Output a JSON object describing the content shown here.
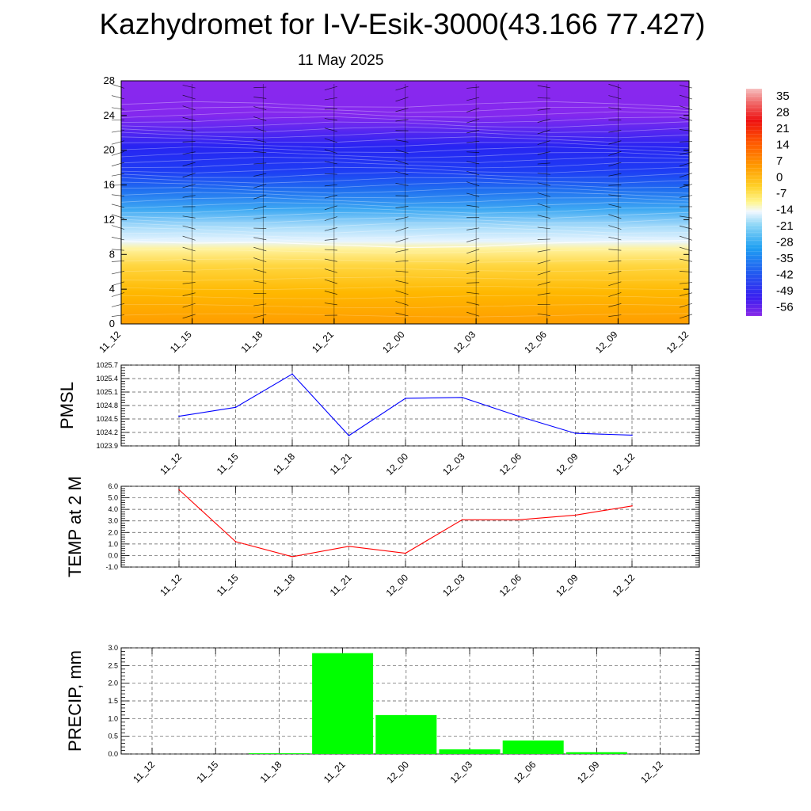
{
  "page": {
    "title": "Kazhydromet for I-V-Esik-3000(43.166 77.427)",
    "subtitle": "11 May 2025"
  },
  "chart_data": [
    {
      "type": "heatmap",
      "x_categories": [
        "11_12",
        "11_15",
        "11_18",
        "11_21",
        "12_00",
        "12_03",
        "12_06",
        "12_09",
        "12_12"
      ],
      "y_ticks": [
        0,
        4,
        8,
        12,
        16,
        20,
        24,
        28
      ],
      "ylim": [
        0,
        28
      ],
      "colorbar": {
        "labels": [
          "35",
          "28",
          "21",
          "14",
          "7",
          "0",
          "-7",
          "-14",
          "-21",
          "-28",
          "-35",
          "-42",
          "-49",
          "-56"
        ],
        "range": [
          -60,
          38
        ]
      },
      "freezing_level": [
        9.5,
        9.3,
        9.4,
        9.1,
        8.8,
        8.9,
        9.3,
        9.5,
        9.6
      ],
      "overlay": "wind barbs"
    },
    {
      "type": "line",
      "ylabel": "PMSL",
      "x": [
        "11_12",
        "11_15",
        "11_18",
        "11_21",
        "12_00",
        "12_03",
        "12_06",
        "12_09",
        "12_12"
      ],
      "values": [
        1024.56,
        1024.76,
        1025.5,
        1024.13,
        1024.96,
        1024.98,
        1024.56,
        1024.18,
        1024.14
      ],
      "yticks": [
        "1023.9",
        "1024.2",
        "1024.5",
        "1024.8",
        "1025.1",
        "1025.4",
        "1025.7"
      ],
      "ylim": [
        1023.9,
        1025.7
      ],
      "color": "#0000ff",
      "grid": true
    },
    {
      "type": "line",
      "ylabel": "TEMP at 2 M",
      "x": [
        "11_12",
        "11_15",
        "11_18",
        "11_21",
        "12_00",
        "12_03",
        "12_06",
        "12_09",
        "12_12"
      ],
      "values": [
        5.7,
        1.2,
        -0.1,
        0.8,
        0.2,
        3.1,
        3.1,
        3.5,
        4.3
      ],
      "yticks": [
        "-1.0",
        "0.0",
        "1.0",
        "2.0",
        "3.0",
        "4.0",
        "5.0",
        "6.0"
      ],
      "ylim": [
        -1.0,
        6.0
      ],
      "color": "#ff0000",
      "grid": true
    },
    {
      "type": "bar",
      "ylabel": "PRECIP, mm",
      "x": [
        "11_12",
        "11_15",
        "11_18",
        "11_21",
        "12_00",
        "12_03",
        "12_06",
        "12_09",
        "12_12"
      ],
      "values": [
        0.0,
        0.0,
        0.02,
        2.85,
        1.1,
        0.13,
        0.38,
        0.05,
        0.0
      ],
      "yticks": [
        "0.0",
        "0.5",
        "1.0",
        "1.5",
        "2.0",
        "2.5",
        "3.0"
      ],
      "ylim": [
        0,
        3.0
      ],
      "color": "#00ff00",
      "grid": true
    }
  ]
}
